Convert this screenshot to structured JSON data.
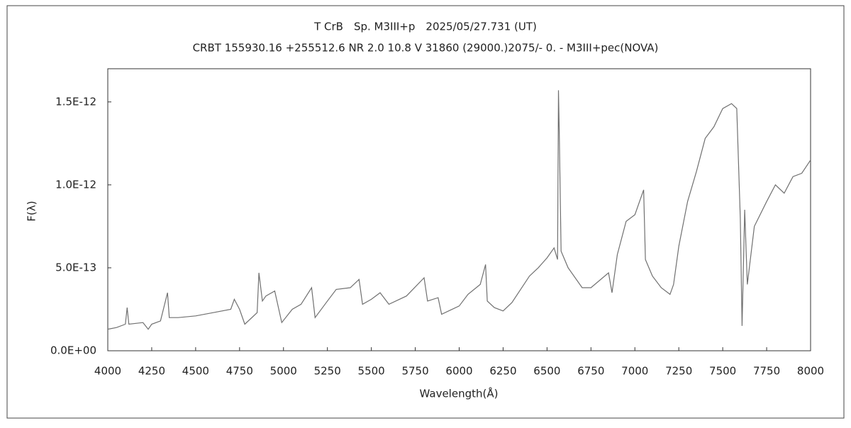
{
  "chart_data": {
    "type": "line",
    "title": "T CrB　Sp. M3III+p　2025/05/27.731 (UT)",
    "subtitle": "CRBT 155930.16 +255512.6 NR 2.0 10.8 V 31860 (29000.)2075/-  0. - M3III+pec(NOVA)",
    "x_label": "Wavelength(Å)",
    "y_label": "F(λ)",
    "xlim": [
      4000,
      8000
    ],
    "xticks": [
      4000,
      4250,
      4500,
      4750,
      5000,
      5250,
      5500,
      5750,
      6000,
      6250,
      6500,
      6750,
      7000,
      7250,
      7500,
      7750,
      8000
    ],
    "ylim": [
      0,
      1.7e-12
    ],
    "yticks": [
      {
        "value": 0,
        "label": "0.0E+00"
      },
      {
        "value": 5e-13,
        "label": "5.0E-13"
      },
      {
        "value": 1e-12,
        "label": "1.0E-12"
      },
      {
        "value": 1.5e-12,
        "label": "1.5E-12"
      }
    ],
    "color": "#707070",
    "x": [
      4000,
      4050,
      4100,
      4110,
      4120,
      4200,
      4230,
      4250,
      4300,
      4340,
      4350,
      4400,
      4500,
      4600,
      4700,
      4720,
      4750,
      4780,
      4850,
      4860,
      4880,
      4900,
      4950,
      4990,
      5050,
      5100,
      5160,
      5180,
      5250,
      5300,
      5380,
      5430,
      5450,
      5500,
      5550,
      5600,
      5700,
      5800,
      5820,
      5880,
      5900,
      6000,
      6050,
      6120,
      6150,
      6160,
      6200,
      6250,
      6300,
      6400,
      6450,
      6500,
      6540,
      6560,
      6565,
      6570,
      6580,
      6620,
      6700,
      6750,
      6850,
      6870,
      6900,
      6950,
      7000,
      7050,
      7060,
      7100,
      7150,
      7200,
      7220,
      7250,
      7300,
      7350,
      7400,
      7450,
      7500,
      7550,
      7580,
      7600,
      7610,
      7625,
      7640,
      7680,
      7750,
      7800,
      7850,
      7900,
      7950,
      8000
    ],
    "values": [
      1.3e-13,
      1.4e-13,
      1.6e-13,
      2.6e-13,
      1.6e-13,
      1.7e-13,
      1.3e-13,
      1.6e-13,
      1.8e-13,
      3.5e-13,
      2e-13,
      2e-13,
      2.1e-13,
      2.3e-13,
      2.5e-13,
      3.1e-13,
      2.5e-13,
      1.6e-13,
      2.3e-13,
      4.7e-13,
      3e-13,
      3.3e-13,
      3.6e-13,
      1.7e-13,
      2.5e-13,
      2.8e-13,
      3.8e-13,
      2e-13,
      3e-13,
      3.7e-13,
      3.8e-13,
      4.3e-13,
      2.8e-13,
      3.1e-13,
      3.5e-13,
      2.8e-13,
      3.3e-13,
      4.4e-13,
      3e-13,
      3.2e-13,
      2.2e-13,
      2.7e-13,
      3.4e-13,
      4e-13,
      5.2e-13,
      3e-13,
      2.6e-13,
      2.4e-13,
      2.9e-13,
      4.5e-13,
      5e-13,
      5.6e-13,
      6.2e-13,
      5.5e-13,
      1.57e-12,
      1.3e-12,
      6e-13,
      5e-13,
      3.8e-13,
      3.8e-13,
      4.7e-13,
      3.5e-13,
      5.8e-13,
      7.8e-13,
      8.2e-13,
      9.7e-13,
      5.5e-13,
      4.5e-13,
      3.8e-13,
      3.4e-13,
      4e-13,
      6.3e-13,
      9e-13,
      1.08e-12,
      1.28e-12,
      1.35e-12,
      1.46e-12,
      1.49e-12,
      1.46e-12,
      8e-13,
      1.5e-13,
      8.5e-13,
      4e-13,
      7.5e-13,
      9e-13,
      1e-12,
      9.5e-13,
      1.05e-12,
      1.07e-12,
      1.15e-12
    ]
  }
}
